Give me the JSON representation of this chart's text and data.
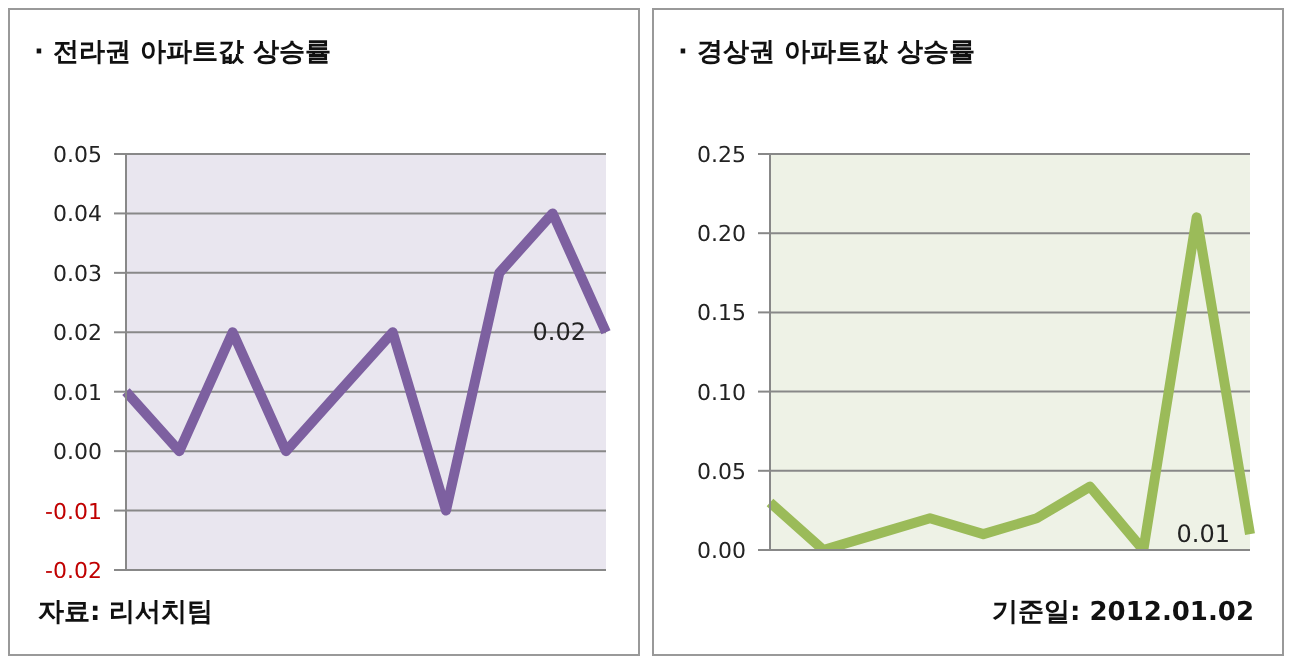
{
  "chart_data": [
    {
      "type": "line",
      "title": "· 전라권 아파트값 상승률",
      "categories": [
        null,
        null,
        null,
        null,
        null,
        null,
        null,
        null,
        null,
        null
      ],
      "series": [
        {
          "color": "#7d60a0",
          "values": [
            0.01,
            0,
            0.02,
            0,
            0.01,
            0.02,
            -0.01,
            0.03,
            0.04,
            0.02
          ],
          "value_labels": [
            null,
            null,
            null,
            null,
            null,
            null,
            null,
            null,
            null,
            "0.02"
          ]
        }
      ],
      "ylim": [
        -0.02,
        0.05
      ],
      "yticks": [
        {
          "value": -0.02,
          "label": "-0.02"
        },
        {
          "value": -0.01,
          "label": "-0.01"
        },
        {
          "value": 0,
          "label": "0.00"
        },
        {
          "value": 0.01,
          "label": "0.01"
        },
        {
          "value": 0.02,
          "label": "0.02"
        },
        {
          "value": 0.03,
          "label": "0.03"
        },
        {
          "value": 0.04,
          "label": "0.04"
        },
        {
          "value": 0.05,
          "label": "0.05"
        }
      ],
      "grid": "y",
      "marker": "none",
      "line_style": "solid",
      "legend": false,
      "tick_labels": "y",
      "annotations": [
        "자료: 리서치팀"
      ]
    },
    {
      "type": "line",
      "title": "· 경상권 아파트값 상승률",
      "categories": [
        null,
        null,
        null,
        null,
        null,
        null,
        null,
        null,
        null,
        null
      ],
      "series": [
        {
          "color": "#9bbb59",
          "values": [
            0.03,
            0,
            0.01,
            0.02,
            0.01,
            0.02,
            0.04,
            0,
            0.21,
            0.01
          ],
          "value_labels": [
            null,
            null,
            null,
            null,
            null,
            null,
            null,
            null,
            null,
            "0.01"
          ]
        }
      ],
      "ylim": [
        0,
        0.25
      ],
      "yticks": [
        {
          "value": 0,
          "label": "0.00"
        },
        {
          "value": 0.05,
          "label": "0.05"
        },
        {
          "value": 0.1,
          "label": "0.10"
        },
        {
          "value": 0.15,
          "label": "0.15"
        },
        {
          "value": 0.2,
          "label": "0.20"
        },
        {
          "value": 0.25,
          "label": "0.25"
        }
      ],
      "grid": "y",
      "marker": "none",
      "line_style": "solid",
      "legend": false,
      "tick_labels": "y",
      "annotations": [
        "기준일: 2012.01.02"
      ]
    }
  ]
}
